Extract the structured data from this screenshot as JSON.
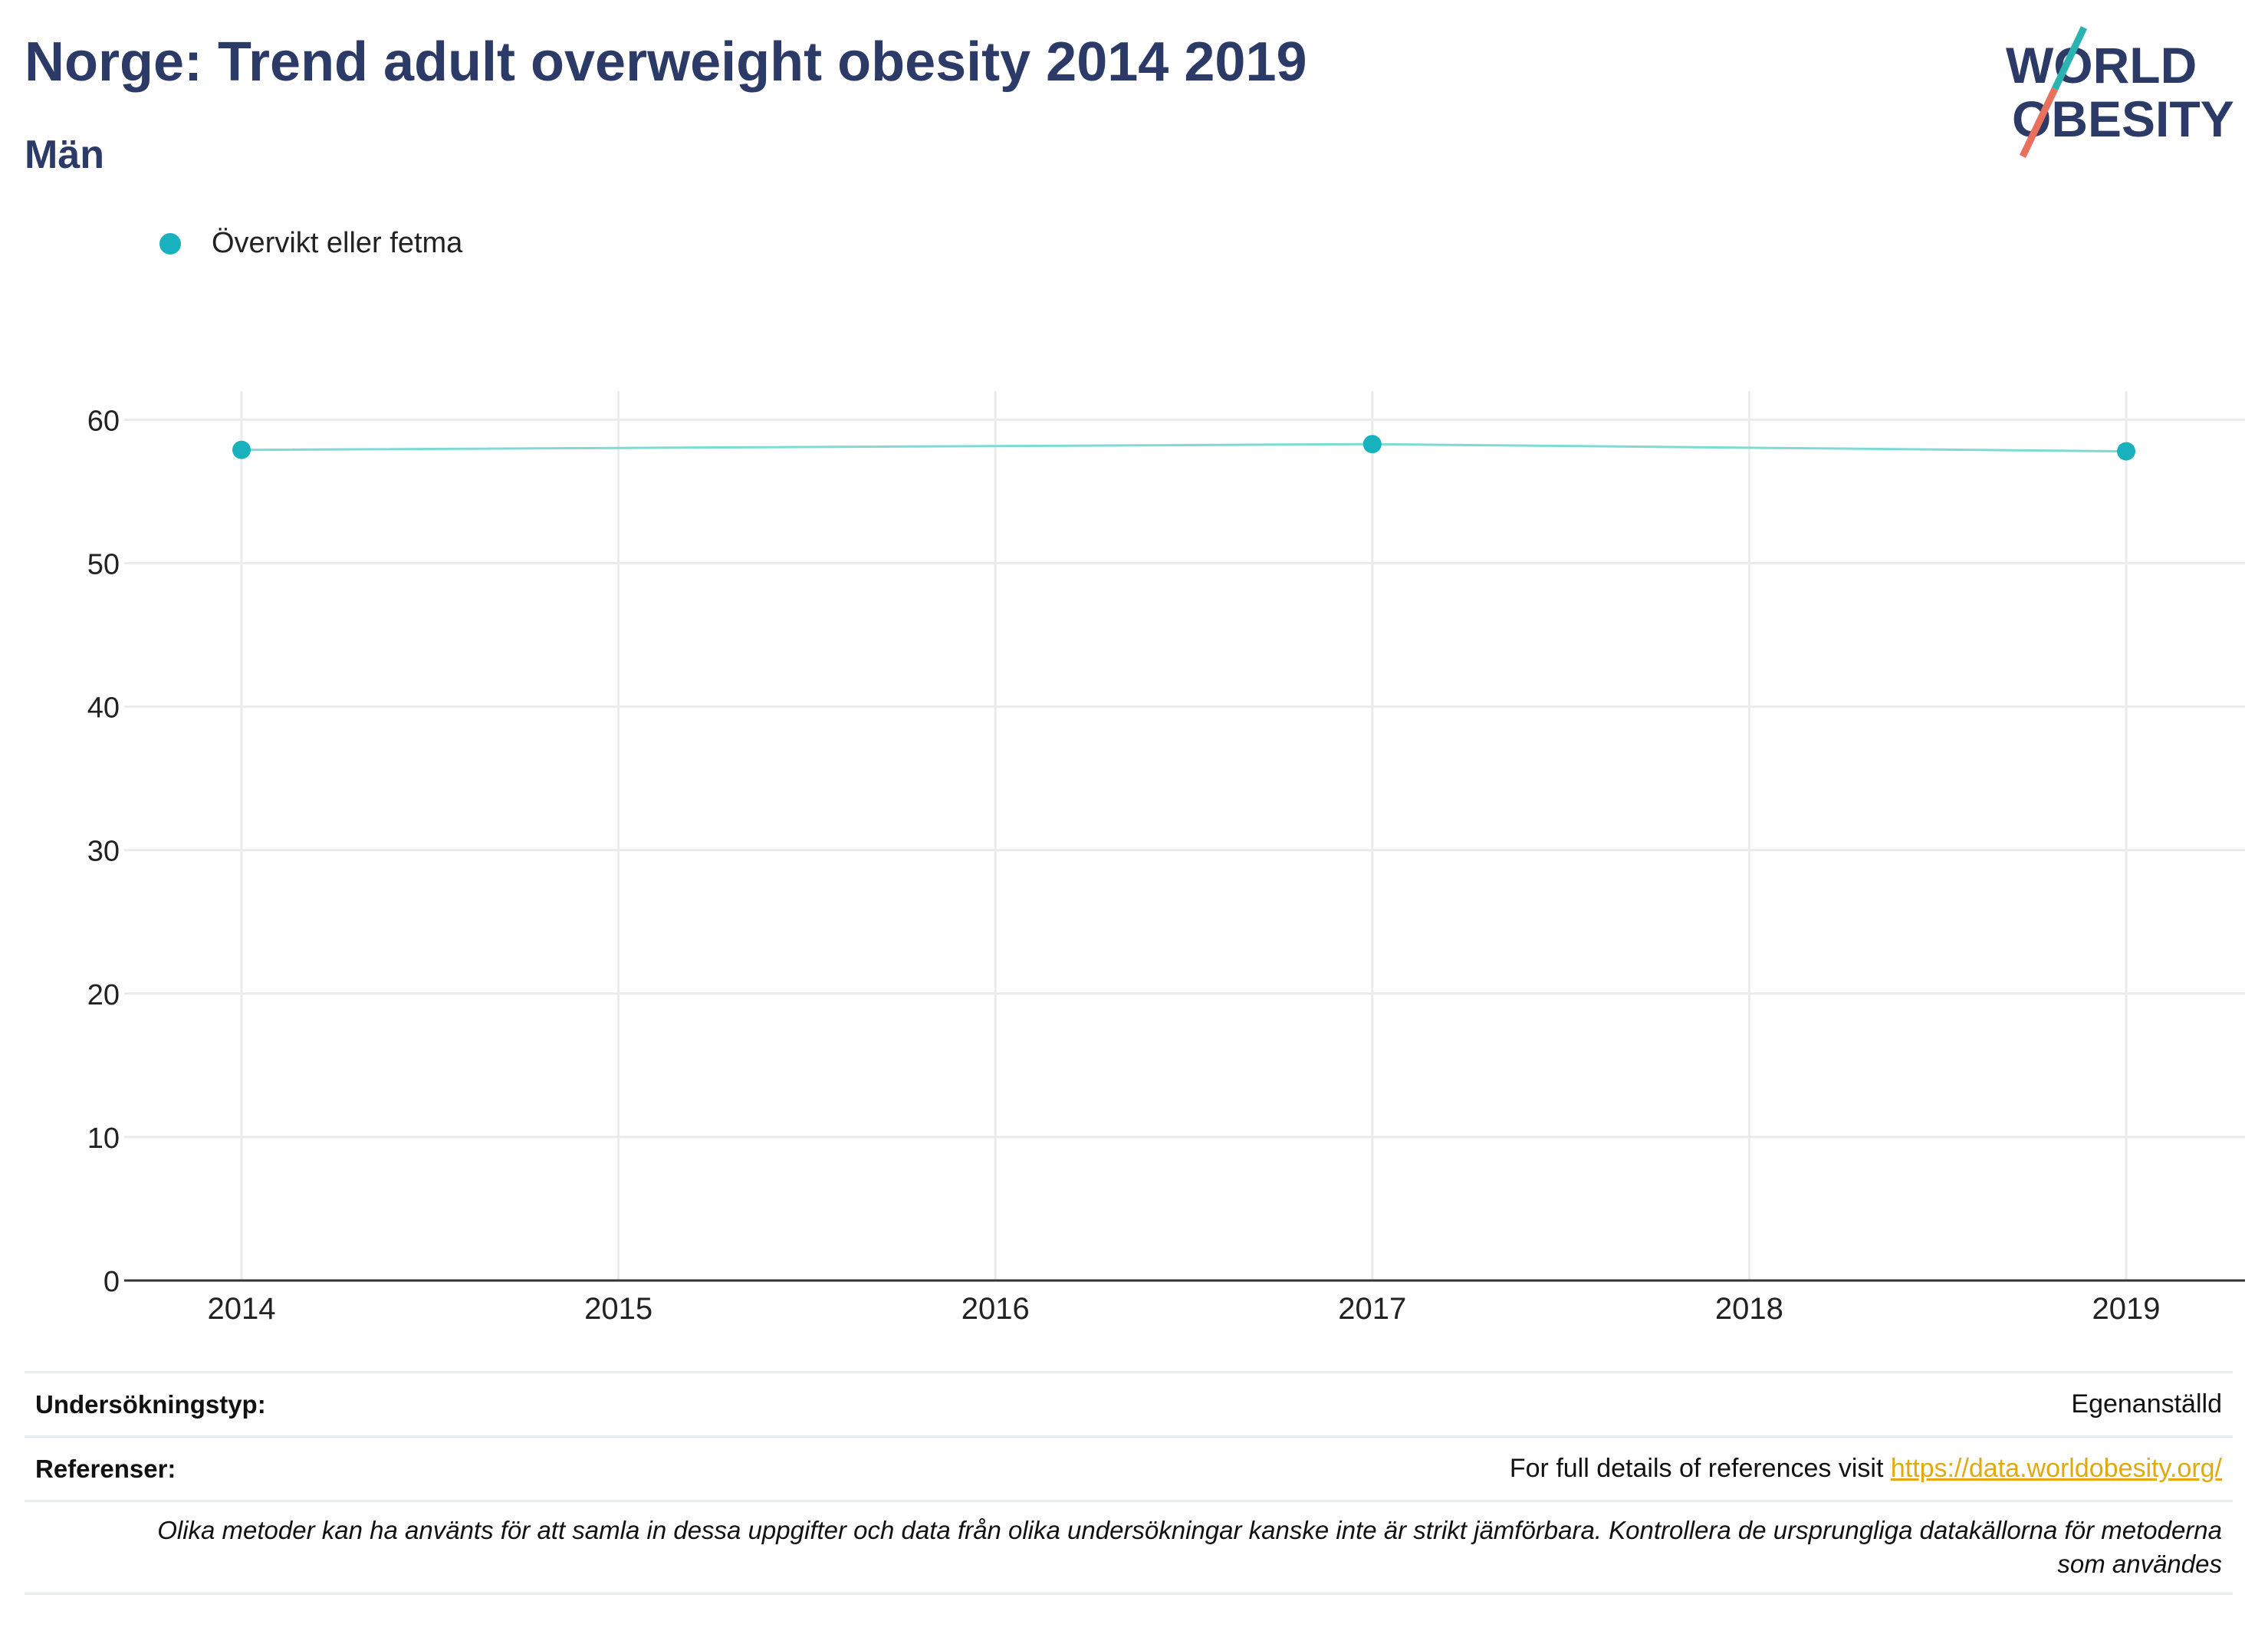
{
  "header": {
    "title": "Norge: Trend adult overweight obesity 2014 2019",
    "subtitle": "Män"
  },
  "logo": {
    "line1": "WORLD",
    "line2": "OBESITY",
    "text_color": "#2b3a67",
    "accent_teal": "#2ab3b1",
    "accent_red": "#e8705c"
  },
  "legend": {
    "label": "Övervikt eller fetma",
    "color": "#17b2bd"
  },
  "chart_data": {
    "type": "line",
    "x": [
      2014,
      2015,
      2016,
      2017,
      2018,
      2019
    ],
    "series": [
      {
        "name": "Övervikt eller fetma",
        "x": [
          2014,
          2017,
          2019
        ],
        "values": [
          57.9,
          58.3,
          57.8
        ],
        "color": "#17b2bd"
      }
    ],
    "title": "Norge: Trend adult overweight obesity 2014 2019",
    "subtitle": "Män",
    "xlabel": "",
    "ylabel": "",
    "ylim": [
      0,
      62
    ],
    "yticks": [
      0,
      10,
      20,
      30,
      40,
      50,
      60
    ],
    "xticks": [
      "2014",
      "2015",
      "2016",
      "2017",
      "2018",
      "2019"
    ],
    "grid": true,
    "legend_position": "top-left"
  },
  "footer": {
    "survey_label": "Undersökningstyp:",
    "survey_value": "Egenanställd",
    "refs_label": "Referenser:",
    "refs_text": "For full details of references visit ",
    "refs_link": "https://data.worldobesity.org/",
    "note": "Olika metoder kan ha använts för att samla in dessa uppgifter och data från olika undersökningar kanske inte är strikt jämförbara. Kontrollera de ursprungliga datakällorna för metoderna som användes"
  }
}
